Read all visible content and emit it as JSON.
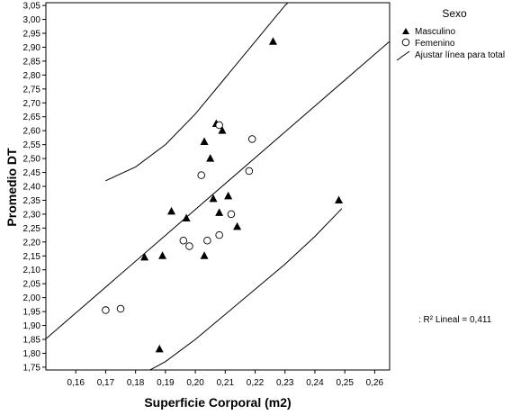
{
  "chart_data": {
    "type": "scatter",
    "xlabel": "Superficie Corporal (m2)",
    "ylabel": "Promedio DT",
    "xlim": [
      0.15,
      0.265
    ],
    "ylim": [
      1.74,
      3.06
    ],
    "x_ticks": [
      "0,16",
      "0,17",
      "0,18",
      "0,19",
      "0,20",
      "0,21",
      "0,22",
      "0,23",
      "0,24",
      "0,25",
      "0,26"
    ],
    "y_ticks": [
      "1,75",
      "1,80",
      "1,85",
      "1,90",
      "1,95",
      "2,00",
      "2,05",
      "2,10",
      "2,15",
      "2,20",
      "2,25",
      "2,30",
      "2,35",
      "2,40",
      "2,45",
      "2,50",
      "2,55",
      "2,60",
      "2,65",
      "2,70",
      "2,75",
      "2,80",
      "2,85",
      "2,90",
      "2,95",
      "3,00",
      "3,05"
    ],
    "grid": false,
    "legend": {
      "title": "Sexo",
      "position": "top-right",
      "entries": [
        "Masculino",
        "Femenino",
        "Ajustar línea para total"
      ]
    },
    "annotation": ": R² Lineal = 0,411",
    "series": [
      {
        "name": "Masculino",
        "marker": "filled-triangle",
        "points": [
          [
            0.183,
            2.145
          ],
          [
            0.188,
            1.815
          ],
          [
            0.189,
            2.15
          ],
          [
            0.192,
            2.31
          ],
          [
            0.197,
            2.285
          ],
          [
            0.203,
            2.15
          ],
          [
            0.203,
            2.56
          ],
          [
            0.205,
            2.5
          ],
          [
            0.206,
            2.355
          ],
          [
            0.207,
            2.625
          ],
          [
            0.208,
            2.305
          ],
          [
            0.209,
            2.6
          ],
          [
            0.211,
            2.365
          ],
          [
            0.214,
            2.255
          ],
          [
            0.226,
            2.92
          ],
          [
            0.248,
            2.35
          ]
        ]
      },
      {
        "name": "Femenino",
        "marker": "hollow-circle",
        "points": [
          [
            0.17,
            1.955
          ],
          [
            0.175,
            1.96
          ],
          [
            0.196,
            2.205
          ],
          [
            0.198,
            2.185
          ],
          [
            0.202,
            2.44
          ],
          [
            0.204,
            2.205
          ],
          [
            0.208,
            2.225
          ],
          [
            0.208,
            2.62
          ],
          [
            0.212,
            2.3
          ],
          [
            0.218,
            2.455
          ],
          [
            0.219,
            2.57
          ]
        ]
      }
    ],
    "fit_line": {
      "name": "Ajustar línea para total",
      "points": [
        [
          0.15,
          1.852
        ],
        [
          0.265,
          2.921
        ]
      ]
    },
    "confidence_bands": [
      {
        "name": "upper",
        "points": [
          [
            0.17,
            2.42
          ],
          [
            0.18,
            2.47
          ],
          [
            0.19,
            2.55
          ],
          [
            0.2,
            2.66
          ],
          [
            0.21,
            2.79
          ],
          [
            0.22,
            2.92
          ],
          [
            0.23,
            3.05
          ],
          [
            0.233,
            3.08
          ]
        ]
      },
      {
        "name": "lower",
        "points": [
          [
            0.184,
            1.735
          ],
          [
            0.19,
            1.77
          ],
          [
            0.2,
            1.85
          ],
          [
            0.21,
            1.94
          ],
          [
            0.22,
            2.03
          ],
          [
            0.23,
            2.12
          ],
          [
            0.24,
            2.22
          ],
          [
            0.249,
            2.32
          ]
        ]
      }
    ]
  }
}
